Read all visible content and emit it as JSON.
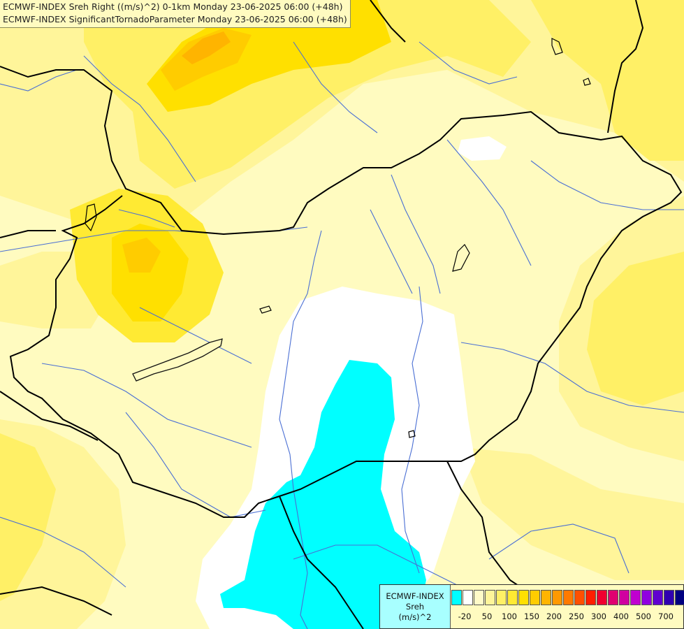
{
  "title": {
    "line1": "ECMWF-INDEX Sreh Right ((m/s)^2) 0-1km Monday 23-06-2025 06:00 (+48h)",
    "line2": "ECMWF-INDEX SignificantTornadoParameter Monday 23-06-2025 06:00 (+48h)"
  },
  "legend": {
    "label_line1": "ECMWF-INDEX",
    "label_line2": "Sreh",
    "label_line3": "(m/s)^2",
    "colors": [
      "#00ffff",
      "#ffffff",
      "#fffbc8",
      "#fff59a",
      "#fff066",
      "#ffea33",
      "#ffe000",
      "#ffcc00",
      "#ffb400",
      "#ff9900",
      "#ff7a00",
      "#ff5000",
      "#ff1e00",
      "#f00030",
      "#e00070",
      "#d000a0",
      "#c000d0",
      "#9000e0",
      "#6000d0",
      "#3000b0",
      "#000080"
    ],
    "ticks": [
      "-20",
      "50",
      "100",
      "150",
      "200",
      "250",
      "300",
      "400",
      "500",
      "700"
    ]
  }
}
